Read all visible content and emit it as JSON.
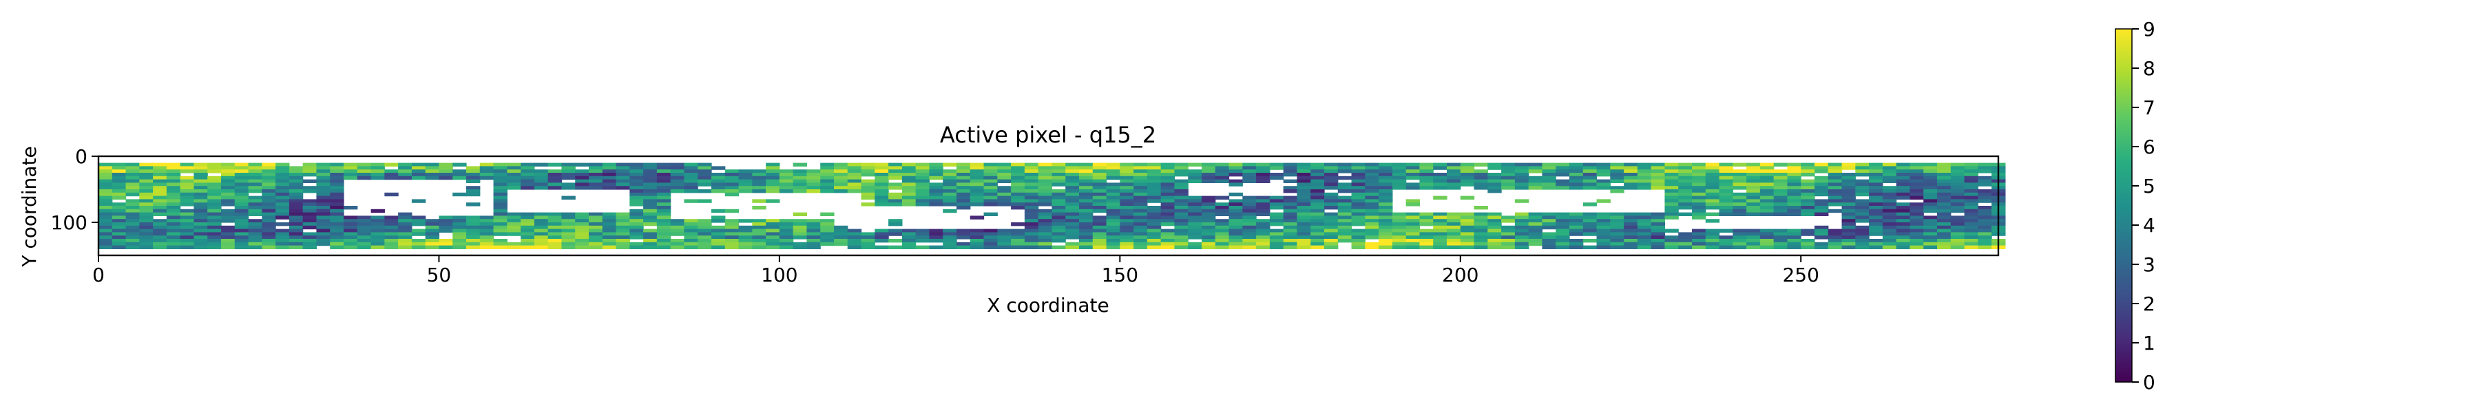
{
  "chart_data": {
    "type": "heatmap",
    "title": "Active pixel - q15_2",
    "xlabel": "X coordinate",
    "ylabel": "Y coordinate",
    "xlim": [
      0,
      279
    ],
    "ylim": [
      0,
      150
    ],
    "xticks": [
      0,
      50,
      100,
      150,
      200,
      250
    ],
    "yticks": [
      0,
      100
    ],
    "colormap": "viridis",
    "colorbar": {
      "min": 0,
      "max": 9,
      "ticks": [
        0,
        1,
        2,
        3,
        4,
        5,
        6,
        7,
        8,
        9
      ]
    },
    "active_band_y": [
      10,
      140
    ],
    "inactive_color": "#ffffff"
  }
}
